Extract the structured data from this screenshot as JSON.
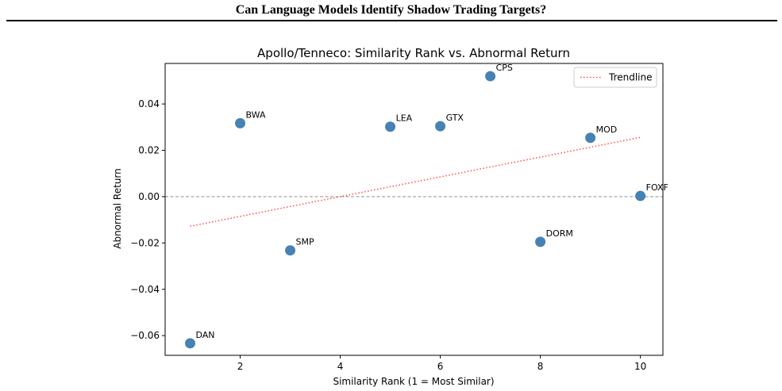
{
  "page": {
    "running_header": "Can Language Models Identify Shadow Trading Targets?"
  },
  "chart_data": {
    "type": "scatter",
    "title": "Apollo/Tenneco: Similarity Rank vs. Abnormal Return",
    "xlabel": "Similarity Rank (1 = Most Similar)",
    "ylabel": "Abnormal Return",
    "xlim": [
      0.5,
      10.45
    ],
    "ylim": [
      -0.0685,
      0.0575
    ],
    "x_ticks": [
      2,
      4,
      6,
      8,
      10
    ],
    "y_ticks": [
      -0.06,
      -0.04,
      -0.02,
      0.0,
      0.02,
      0.04
    ],
    "y_tick_labels": [
      "−0.06",
      "−0.04",
      "−0.02",
      "0.00",
      "0.02",
      "0.04"
    ],
    "grid": false,
    "legend_position": "top-right",
    "legend": [
      {
        "label": "Trendline",
        "style": "dotted",
        "color": "#ff4d4d"
      }
    ],
    "points": [
      {
        "label": "DAN",
        "x": 1,
        "y": -0.0633
      },
      {
        "label": "BWA",
        "x": 2,
        "y": 0.0317
      },
      {
        "label": "SMP",
        "x": 3,
        "y": -0.0232
      },
      {
        "label": "LEA",
        "x": 5,
        "y": 0.0302
      },
      {
        "label": "GTX",
        "x": 6,
        "y": 0.0304
      },
      {
        "label": "CPS",
        "x": 7,
        "y": 0.052
      },
      {
        "label": "DORM",
        "x": 8,
        "y": -0.0195
      },
      {
        "label": "MOD",
        "x": 9,
        "y": 0.0254
      },
      {
        "label": "FOXF",
        "x": 10,
        "y": 0.0003
      }
    ],
    "trendline": {
      "x": [
        1,
        10
      ],
      "y": [
        -0.0128,
        0.0256
      ]
    },
    "zero_line": {
      "y": 0,
      "style": "dashed",
      "color": "#808080"
    },
    "colors": {
      "points": "#4682b4",
      "trendline": "#ff4d4d",
      "zero_line": "#808080"
    }
  }
}
